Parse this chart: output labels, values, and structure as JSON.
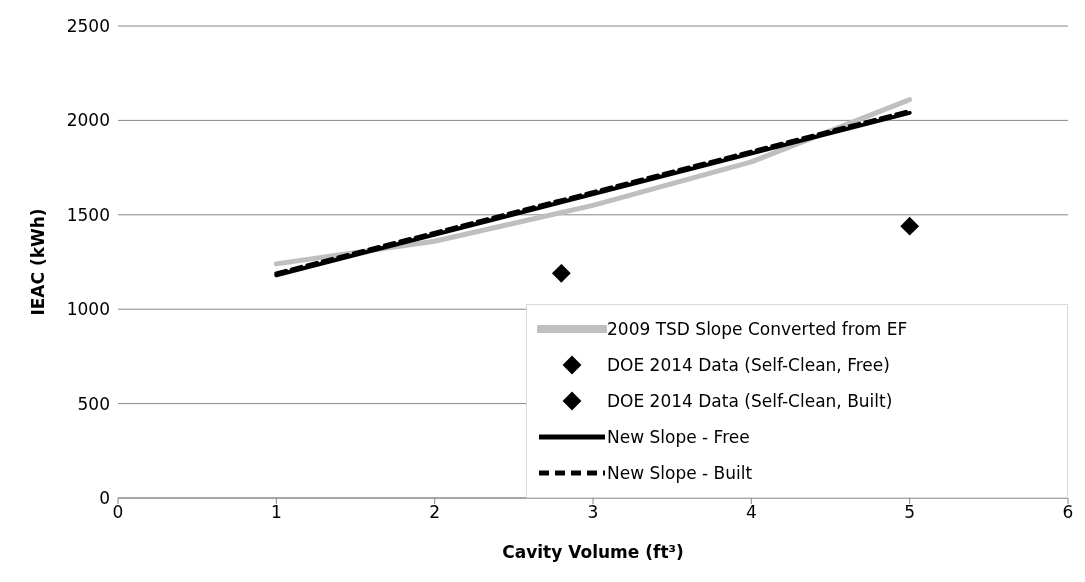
{
  "chart_data": {
    "type": "line",
    "xlabel": "Cavity Volume (ft³)",
    "ylabel": "IEAC (kWh)",
    "xlim": [
      0,
      6
    ],
    "xticks": [
      0,
      1,
      2,
      3,
      4,
      5,
      6
    ],
    "ylim": [
      0,
      2500
    ],
    "yticks": [
      0,
      500,
      1000,
      1500,
      2000,
      2500
    ],
    "grid": "y",
    "legend": "bottom right",
    "marker": "none",
    "series": [
      {
        "name": "2009 TSD Slope Converted from EF",
        "color": "#bfbfbf",
        "x": [
          1,
          2,
          3,
          4,
          5
        ],
        "values": [
          1240,
          1360,
          1550,
          1780,
          2110
        ]
      },
      {
        "name": "DOE 2014 Data (Self-Clean, Free)",
        "type": "scatter",
        "marker": "diamond",
        "color": "#000000",
        "x": [
          5
        ],
        "values": [
          1440
        ]
      },
      {
        "name": "DOE 2014 Data (Self-Clean, Built)",
        "type": "scatter",
        "marker": "diamond",
        "color": "#000000",
        "x": [
          2.8
        ],
        "values": [
          1190
        ]
      },
      {
        "name": "New Slope - Free",
        "line_style": "solid",
        "color": "#000000",
        "x": [
          1,
          5
        ],
        "values": [
          1180,
          2040
        ]
      },
      {
        "name": "New Slope - Built",
        "line_style": "dashed",
        "color": "#000000",
        "x": [
          1,
          5
        ],
        "values": [
          1190,
          2050
        ]
      }
    ]
  }
}
